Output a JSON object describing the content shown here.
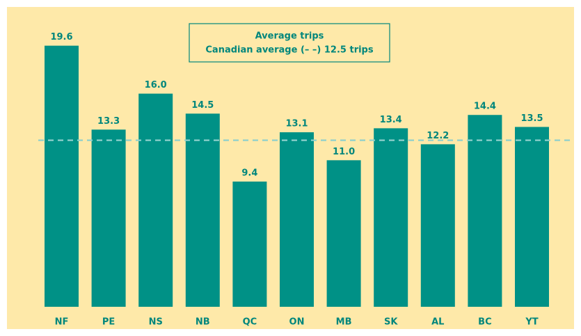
{
  "chart_data": {
    "type": "bar",
    "legend_title": "Average trips",
    "categories": [
      "NF",
      "PE",
      "NS",
      "NB",
      "QC",
      "ON",
      "MB",
      "SK",
      "AL",
      "BC",
      "YT"
    ],
    "values": [
      19.6,
      13.3,
      16.0,
      14.5,
      9.4,
      13.1,
      11.0,
      13.4,
      12.2,
      14.4,
      13.5
    ],
    "value_labels": [
      "19.6",
      "13.3",
      "16.0",
      "14.5",
      "9.4",
      "13.1",
      "11.0",
      "13.4",
      "12.2",
      "14.4",
      "13.5"
    ],
    "color": "#009186",
    "reference_line": {
      "value": 12.5,
      "label": "Canadian average (– –) 12.5 trips",
      "color": "#8fd0cc"
    },
    "ylim": [
      0,
      20
    ]
  }
}
